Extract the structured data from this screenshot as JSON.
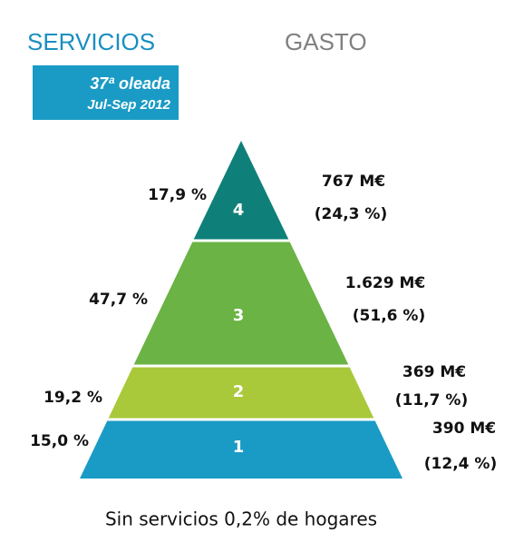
{
  "header": {
    "left_title": "SERVICIOS",
    "right_title": "GASTO",
    "badge": {
      "line1": "37ª oleada",
      "line2": "Jul-Sep 2012"
    }
  },
  "levels": [
    {
      "level": "4",
      "households": "17,9 %",
      "spend": "767 M€",
      "spend_share": "(24,3 %)"
    },
    {
      "level": "3",
      "households": "47,7 %",
      "spend": "1.629 M€",
      "spend_share": "(51,6 %)"
    },
    {
      "level": "2",
      "households": "19,2 %",
      "spend": "369 M€",
      "spend_share": "(11,7 %)"
    },
    {
      "level": "1",
      "households": "15,0 %",
      "spend": "390 M€",
      "spend_share": "(12,4 %)"
    }
  ],
  "footer": "Sin servicios 0,2% de hogares"
}
